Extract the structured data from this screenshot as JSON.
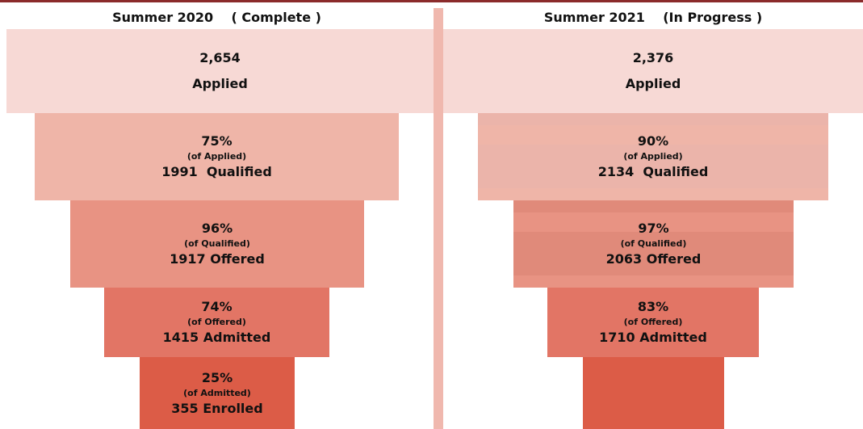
{
  "panels": [
    {
      "header": "Summer 2020    ( Complete )",
      "stages": [
        {
          "lines": [
            "2,654",
            "Applied"
          ]
        },
        {
          "lines": [
            "75%",
            "(of Applied)",
            "1991  Qualified"
          ]
        },
        {
          "lines": [
            "96%",
            "(of Qualified)",
            "1917 Offered"
          ]
        },
        {
          "lines": [
            "74%",
            "(of Offered)",
            "1415 Admitted"
          ]
        },
        {
          "lines": [
            "25%",
            "(of Admitted)",
            "355 Enrolled"
          ]
        }
      ]
    },
    {
      "header": "Summer 2021    (In Progress )",
      "stages": [
        {
          "lines": [
            "2,376",
            "Applied"
          ]
        },
        {
          "lines": [
            "90%",
            "(of Applied)",
            "2134  Qualified"
          ]
        },
        {
          "lines": [
            "97%",
            "(of Qualified)",
            "2063 Offered"
          ]
        },
        {
          "lines": [
            "83%",
            "(of Offered)",
            "1710 Admitted"
          ]
        },
        {
          "lines": []
        }
      ]
    }
  ]
}
